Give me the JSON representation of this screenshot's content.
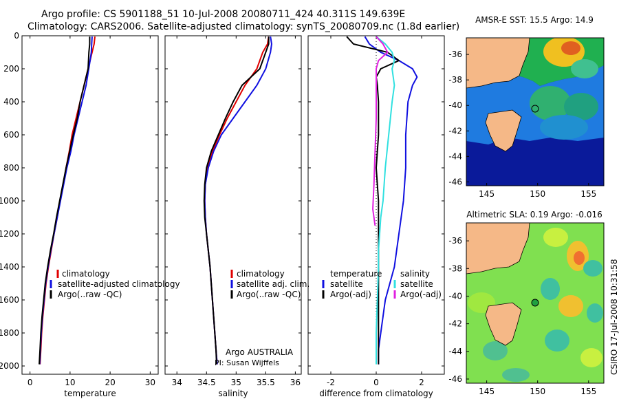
{
  "title_line1": "Argo profile: CS 5901188_51 10-Jul-2008 20080711_424 40.311S 149.639E",
  "title_line2": "Climatology: CARS2006. Satellite-adjusted climatology: synTS_20080709.nc (1.8d earlier)",
  "side_label": "CSIRO 17-Jul-2008 10:31:58",
  "colors": {
    "red": "#e00000",
    "blue": "#1010e0",
    "black": "#000000",
    "cyan": "#30e0e0",
    "magenta": "#e020e0",
    "land": "#f5b887"
  },
  "chart_data": [
    {
      "id": "temperature",
      "type": "line",
      "xlabel": "temperature",
      "ylabel": "",
      "xlim": [
        -2,
        32
      ],
      "ylim": [
        0,
        2050
      ],
      "y_reversed": true,
      "xticks": [
        0,
        10,
        20,
        30
      ],
      "yticks": [
        0,
        200,
        400,
        600,
        800,
        1000,
        1200,
        1400,
        1600,
        1800,
        2000
      ],
      "legend": [
        "climatology",
        "satellite-adjusted climatology",
        "Argo(..raw -QC)"
      ],
      "series": [
        {
          "name": "climatology",
          "color": "red",
          "x": [
            16.2,
            16.0,
            15.5,
            14.5,
            13.5,
            12.5,
            11.5,
            10.5,
            9.8,
            9.0,
            8.3,
            7.5,
            6.8,
            6.0,
            5.3,
            4.6,
            4.0,
            3.6,
            3.2,
            2.9,
            2.7,
            2.5
          ],
          "y": [
            5,
            50,
            100,
            200,
            300,
            400,
            500,
            600,
            700,
            800,
            900,
            1000,
            1100,
            1200,
            1300,
            1400,
            1500,
            1600,
            1700,
            1800,
            1900,
            1990
          ]
        },
        {
          "name": "satellite-adjusted climatology",
          "color": "blue",
          "x": [
            15.5,
            15.4,
            15.3,
            15.0,
            14.0,
            13.0,
            12.0,
            11.0,
            10.2,
            9.2,
            8.4,
            7.6,
            6.8,
            6.0,
            5.2,
            4.5,
            3.9,
            3.5,
            3.1,
            2.8,
            2.6,
            2.4
          ],
          "y": [
            5,
            50,
            100,
            150,
            300,
            400,
            500,
            600,
            700,
            800,
            900,
            1000,
            1100,
            1200,
            1300,
            1400,
            1500,
            1600,
            1700,
            1800,
            1900,
            1990
          ]
        },
        {
          "name": "Argo(..raw -QC)",
          "color": "black",
          "x": [
            14.9,
            14.9,
            14.7,
            14.5,
            13.5,
            12.5,
            11.8,
            10.8,
            9.9,
            9.0,
            8.2,
            7.4,
            6.6,
            5.9,
            5.1,
            4.4,
            3.8,
            3.4,
            3.0,
            2.7,
            2.5,
            2.3
          ],
          "y": [
            5,
            50,
            100,
            200,
            300,
            400,
            500,
            600,
            700,
            800,
            900,
            1000,
            1100,
            1200,
            1300,
            1400,
            1500,
            1600,
            1700,
            1800,
            1900,
            1990
          ]
        }
      ]
    },
    {
      "id": "salinity",
      "type": "line",
      "xlabel": "salinity",
      "ylabel": "",
      "xlim": [
        33.8,
        36.1
      ],
      "ylim": [
        0,
        2050
      ],
      "y_reversed": true,
      "xticks": [
        34,
        34.5,
        35,
        35.5,
        36
      ],
      "yticks": [
        0,
        200,
        400,
        600,
        800,
        1000,
        1200,
        1400,
        1600,
        1800,
        2000
      ],
      "legend": [
        "climatology",
        "satellite adj. clim.",
        "Argo(..raw -QC)"
      ],
      "series": [
        {
          "name": "climatology",
          "color": "red",
          "x": [
            35.55,
            35.53,
            35.45,
            35.35,
            35.15,
            35.0,
            34.85,
            34.72,
            34.6,
            34.52,
            34.48,
            34.47,
            34.48,
            34.5,
            34.53,
            34.56,
            34.58,
            34.6,
            34.62,
            34.64,
            34.66,
            34.68
          ],
          "y": [
            5,
            50,
            100,
            200,
            300,
            400,
            500,
            600,
            700,
            800,
            900,
            1000,
            1100,
            1200,
            1300,
            1400,
            1500,
            1600,
            1700,
            1800,
            1900,
            1990
          ]
        },
        {
          "name": "satellite adj. clim.",
          "color": "blue",
          "x": [
            35.58,
            35.6,
            35.58,
            35.5,
            35.35,
            35.15,
            34.95,
            34.75,
            34.62,
            34.53,
            34.48,
            34.47,
            34.48,
            34.5,
            34.53,
            34.56,
            34.58,
            34.6,
            34.62,
            34.64,
            34.66,
            34.68
          ],
          "y": [
            5,
            50,
            100,
            200,
            300,
            400,
            500,
            600,
            700,
            800,
            900,
            1000,
            1100,
            1200,
            1300,
            1400,
            1500,
            1600,
            1700,
            1800,
            1900,
            1990
          ]
        },
        {
          "name": "Argo(..raw -QC)",
          "color": "black",
          "x": [
            35.55,
            35.55,
            35.5,
            35.4,
            35.1,
            34.95,
            34.82,
            34.7,
            34.58,
            34.5,
            34.47,
            34.46,
            34.47,
            34.5,
            34.53,
            34.56,
            34.58,
            34.6,
            34.62,
            34.64,
            34.66,
            34.67
          ],
          "y": [
            5,
            50,
            100,
            200,
            300,
            400,
            500,
            600,
            700,
            800,
            900,
            1000,
            1100,
            1200,
            1300,
            1400,
            1500,
            1600,
            1700,
            1800,
            1900,
            1990
          ]
        }
      ]
    },
    {
      "id": "difference",
      "type": "line",
      "xlabel": "difference from climatology",
      "ylabel": "",
      "xlim": [
        -3,
        3
      ],
      "ylim": [
        0,
        2050
      ],
      "y_reversed": true,
      "xticks": [
        -2,
        0,
        2
      ],
      "yticks": [
        0,
        200,
        400,
        600,
        800,
        1000,
        1200,
        1400,
        1600,
        1800,
        2000
      ],
      "legend_left_title": "temperature",
      "legend_right_title": "salinity",
      "legend": [
        "satellite",
        "Argo(-adj)",
        "satellite",
        "Argo(-adj)"
      ],
      "series": [
        {
          "name": "temperature satellite",
          "color": "blue",
          "x": [
            -0.5,
            -0.3,
            0.2,
            1.0,
            1.6,
            1.8,
            1.6,
            1.4,
            1.3,
            1.3,
            1.2,
            1.1,
            1.0,
            0.9,
            0.8,
            0.6,
            0.4,
            0.3,
            0.2,
            0.1,
            0.1,
            0.1
          ],
          "y": [
            5,
            50,
            100,
            150,
            200,
            250,
            300,
            400,
            600,
            800,
            1000,
            1100,
            1200,
            1300,
            1400,
            1500,
            1600,
            1700,
            1800,
            1900,
            1950,
            1990
          ]
        },
        {
          "name": "temperature Argo(-adj)",
          "color": "black",
          "x": [
            -1.3,
            -1.0,
            0.5,
            1.0,
            0.2,
            0.0,
            0.05,
            0.1,
            0.1,
            0.0,
            0.1,
            0.1,
            0.1,
            0.1,
            0.1,
            0.1,
            0.1,
            0.1,
            0.1,
            0.1,
            0.1
          ],
          "y": [
            5,
            50,
            100,
            150,
            200,
            250,
            300,
            400,
            600,
            800,
            1000,
            1100,
            1200,
            1300,
            1400,
            1500,
            1600,
            1700,
            1800,
            1900,
            1990
          ]
        },
        {
          "name": "salinity satellite",
          "color": "cyan",
          "x": [
            0.0,
            0.4,
            0.7,
            0.8,
            0.7,
            0.8,
            0.7,
            0.55,
            0.4,
            0.3,
            0.2,
            0.15,
            0.1,
            0.1,
            0.05,
            0.0,
            0.0,
            0.0
          ],
          "y": [
            5,
            50,
            100,
            150,
            200,
            300,
            400,
            600,
            800,
            1000,
            1100,
            1200,
            1300,
            1400,
            1600,
            1800,
            1900,
            1990
          ]
        },
        {
          "name": "salinity Argo(-adj)",
          "color": "magenta",
          "x": [
            0.0,
            0.3,
            0.5,
            0.1,
            0.0,
            0.0,
            0.0,
            -0.05,
            -0.1,
            -0.15,
            -0.1,
            -0.05
          ],
          "y": [
            5,
            50,
            100,
            150,
            200,
            300,
            500,
            700,
            900,
            1050,
            1100,
            1150
          ]
        }
      ]
    },
    {
      "id": "sst_map",
      "type": "heatmap",
      "title": "AMSR-E SST: 15.5  Argo: 14.9",
      "xlim": [
        143,
        156.5
      ],
      "ylim": [
        -46.3,
        -34.7
      ],
      "xticks": [
        145,
        150,
        155
      ],
      "yticks": [
        -36,
        -38,
        -40,
        -42,
        -44,
        -46
      ],
      "float_lon": 149.639,
      "float_lat": -40.311
    },
    {
      "id": "sla_map",
      "type": "heatmap",
      "title": "Altimetric SLA: 0.19  Argo: -0.016",
      "xlim": [
        143,
        156.5
      ],
      "ylim": [
        -46.3,
        -34.7
      ],
      "xticks": [
        145,
        150,
        155
      ],
      "yticks": [
        -36,
        -38,
        -40,
        -42,
        -44,
        -46
      ],
      "float_lon": 149.639,
      "float_lat": -40.311
    }
  ],
  "annotation": {
    "line1": "Argo AUSTRALIA",
    "line2": "PI: Susan Wijffels"
  }
}
